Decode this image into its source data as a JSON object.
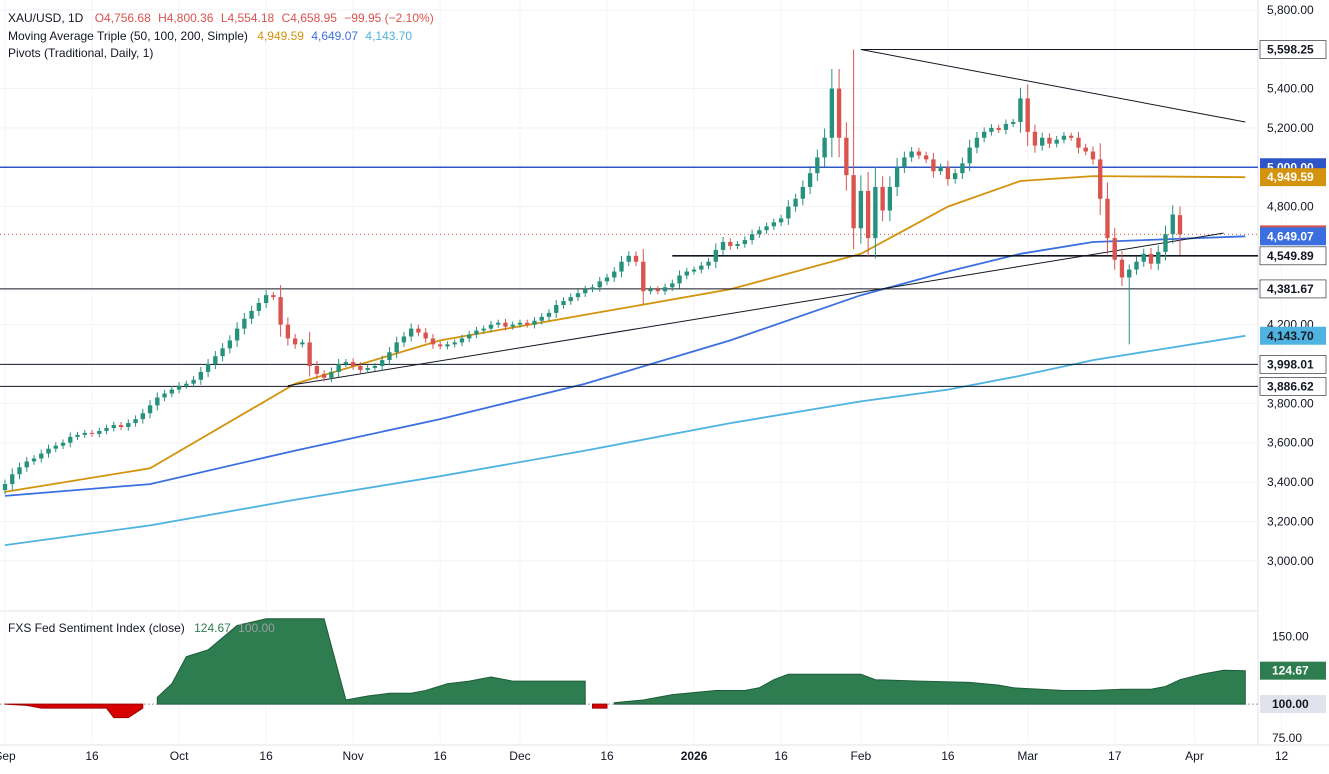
{
  "header": {
    "symbol": "XAU/USD, 1D",
    "ohlc_o": "O4,756.68",
    "ohlc_h": "H4,800.36",
    "ohlc_l": "L4,554.18",
    "ohlc_c": "C4,658.95",
    "change": "−99.95 (−2.10%)",
    "ma_label": "Moving Average Triple (50, 100, 200, Simple)",
    "ma50": "4,949.59",
    "ma100": "4,649.07",
    "ma200": "4,143.70",
    "pivots_label": "Pivots (Traditional, Daily, 1)",
    "indicator_label": "FXS Fed Sentiment Index (close)",
    "indicator_value": "124.67",
    "indicator_ref": "100.00"
  },
  "colors": {
    "up": "#26917c",
    "down": "#d9534f",
    "ma50": "#d4930d",
    "ma100": "#3b6fe0",
    "ma200": "#4eb3e0",
    "resistance": "#2e54c8",
    "sentiment_up": "#2e7d50",
    "sentiment_down": "#d60000"
  },
  "x_axis": {
    "ticks": [
      "Sep",
      "16",
      "Oct",
      "16",
      "Nov",
      "16",
      "Dec",
      "16",
      "2026",
      "16",
      "Feb",
      "16",
      "Mar",
      "17",
      "Apr",
      "12"
    ]
  },
  "chart_data": [
    {
      "type": "candlestick",
      "symbol": "XAU/USD",
      "interval": "1D",
      "y_ticks": [
        "5,800.00",
        "5,400.00",
        "5,200.00",
        "4,800.00",
        "4,200.00",
        "3,800.00",
        "3,600.00",
        "3,400.00",
        "3,200.00",
        "3,000.00"
      ],
      "ylim": [
        2750,
        5850
      ],
      "last": {
        "open": 4756.68,
        "high": 4800.36,
        "low": 4554.18,
        "close": 4658.95
      },
      "closes": [
        3390,
        3440,
        3475,
        3505,
        3520,
        3545,
        3570,
        3585,
        3600,
        3630,
        3640,
        3650,
        3645,
        3660,
        3675,
        3690,
        3680,
        3700,
        3720,
        3750,
        3790,
        3830,
        3850,
        3870,
        3890,
        3900,
        3920,
        3960,
        4000,
        4040,
        4080,
        4120,
        4180,
        4230,
        4270,
        4310,
        4350,
        4340,
        4200,
        4130,
        4100,
        4110,
        3990,
        3950,
        3930,
        3960,
        4000,
        4010,
        3990,
        3970,
        3980,
        3990,
        4020,
        4060,
        4110,
        4140,
        4180,
        4160,
        4130,
        4100,
        4090,
        4100,
        4110,
        4130,
        4150,
        4170,
        4180,
        4200,
        4210,
        4190,
        4200,
        4210,
        4200,
        4220,
        4240,
        4260,
        4300,
        4320,
        4340,
        4360,
        4380,
        4390,
        4420,
        4440,
        4470,
        4520,
        4550,
        4520,
        4370,
        4380,
        4370,
        4390,
        4410,
        4450,
        4470,
        4480,
        4500,
        4520,
        4580,
        4620,
        4600,
        4610,
        4630,
        4660,
        4680,
        4700,
        4720,
        4740,
        4800,
        4840,
        4900,
        4970,
        5050,
        5150,
        5400,
        5150,
        4960,
        4690,
        4880,
        4640,
        4900,
        4780,
        4900,
        5000,
        5050,
        5080,
        5060,
        5040,
        4980,
        5000,
        4940,
        4970,
        5020,
        5100,
        5150,
        5180,
        5200,
        5190,
        5220,
        5230,
        5350,
        5180,
        5110,
        5150,
        5120,
        5140,
        5160,
        5150,
        5100,
        5080,
        5040,
        4840,
        4640,
        4530,
        4440,
        4480,
        4520,
        4560,
        4510,
        4570,
        4660,
        4760,
        4658.95
      ],
      "markers": [
        {
          "label": "5,598.25",
          "value": 5598.25
        },
        {
          "label": "5,000.00",
          "value": 5000.0
        },
        {
          "label": "4,949.59",
          "value": 4949.59,
          "series": "MA 50"
        },
        {
          "label": "4,658.95",
          "value": 4658.95
        },
        {
          "label": "4,649.07",
          "value": 4649.07,
          "series": "MA 100"
        },
        {
          "label": "4,549.89",
          "value": 4549.89
        },
        {
          "label": "4,381.67",
          "value": 4381.67
        },
        {
          "label": "4,143.70",
          "value": 4143.7,
          "series": "MA 200"
        },
        {
          "label": "3,998.01",
          "value": 3998.01
        },
        {
          "label": "3,886.62",
          "value": 3886.62
        }
      ],
      "horizontal_lines": [
        5598.25,
        5000.0,
        4549.89,
        4381.67,
        3998.01,
        3886.62
      ],
      "trendlines": [
        {
          "from": {
            "i": 118,
            "v": 5598.25
          },
          "to": {
            "i": 171,
            "v": 5230
          }
        },
        {
          "from": {
            "i": 39,
            "v": 3890
          },
          "to": {
            "i": 168,
            "v": 4665
          }
        }
      ],
      "ma_series": [
        {
          "name": "MA 50",
          "points": [
            [
              0,
              3350
            ],
            [
              20,
              3470
            ],
            [
              40,
              3900
            ],
            [
              60,
              4120
            ],
            [
              80,
              4250
            ],
            [
              100,
              4380
            ],
            [
              118,
              4560
            ],
            [
              130,
              4800
            ],
            [
              140,
              4930
            ],
            [
              150,
              4955
            ],
            [
              171,
              4949.59
            ]
          ]
        },
        {
          "name": "MA 100",
          "points": [
            [
              0,
              3330
            ],
            [
              20,
              3390
            ],
            [
              40,
              3560
            ],
            [
              60,
              3720
            ],
            [
              80,
              3900
            ],
            [
              100,
              4120
            ],
            [
              118,
              4350
            ],
            [
              130,
              4470
            ],
            [
              140,
              4560
            ],
            [
              150,
              4620
            ],
            [
              171,
              4649.07
            ]
          ]
        },
        {
          "name": "MA 200",
          "points": [
            [
              0,
              3080
            ],
            [
              20,
              3180
            ],
            [
              40,
              3310
            ],
            [
              60,
              3430
            ],
            [
              80,
              3560
            ],
            [
              100,
              3700
            ],
            [
              118,
              3810
            ],
            [
              130,
              3870
            ],
            [
              140,
              3940
            ],
            [
              150,
              4020
            ],
            [
              171,
              4143.7
            ]
          ]
        }
      ]
    },
    {
      "type": "area",
      "name": "FXS Fed Sentiment Index (close)",
      "baseline": 100,
      "y_ticks": [
        "150.00",
        "75.00"
      ],
      "ylim": [
        72,
        168
      ],
      "markers": [
        {
          "label": "124.67",
          "value": 124.67
        },
        {
          "label": "100.00",
          "value": 100.0
        }
      ],
      "points": [
        [
          0,
          100
        ],
        [
          3,
          99
        ],
        [
          5,
          97
        ],
        [
          10,
          97
        ],
        [
          14,
          97
        ],
        [
          15,
          90
        ],
        [
          17,
          90
        ],
        [
          19,
          97
        ],
        [
          21,
          105
        ],
        [
          23,
          115
        ],
        [
          25,
          135
        ],
        [
          28,
          140
        ],
        [
          32,
          158
        ],
        [
          36,
          163
        ],
        [
          44,
          163
        ],
        [
          47,
          103
        ],
        [
          50,
          106
        ],
        [
          53,
          108
        ],
        [
          56,
          108
        ],
        [
          58,
          110
        ],
        [
          61,
          115
        ],
        [
          64,
          117
        ],
        [
          67,
          120
        ],
        [
          70,
          117
        ],
        [
          80,
          117
        ],
        [
          81,
          97
        ],
        [
          83,
          97
        ],
        [
          84,
          101
        ],
        [
          88,
          103
        ],
        [
          92,
          107
        ],
        [
          98,
          110
        ],
        [
          102,
          110
        ],
        [
          104,
          112
        ],
        [
          106,
          118
        ],
        [
          108,
          122
        ],
        [
          112,
          122
        ],
        [
          118,
          122
        ],
        [
          120,
          118
        ],
        [
          126,
          117
        ],
        [
          133,
          116
        ],
        [
          137,
          114
        ],
        [
          139,
          112
        ],
        [
          146,
          110
        ],
        [
          150,
          110
        ],
        [
          154,
          111
        ],
        [
          158,
          111
        ],
        [
          160,
          113
        ],
        [
          162,
          118
        ],
        [
          165,
          122
        ],
        [
          168,
          125
        ],
        [
          171,
          124.67
        ]
      ]
    }
  ]
}
